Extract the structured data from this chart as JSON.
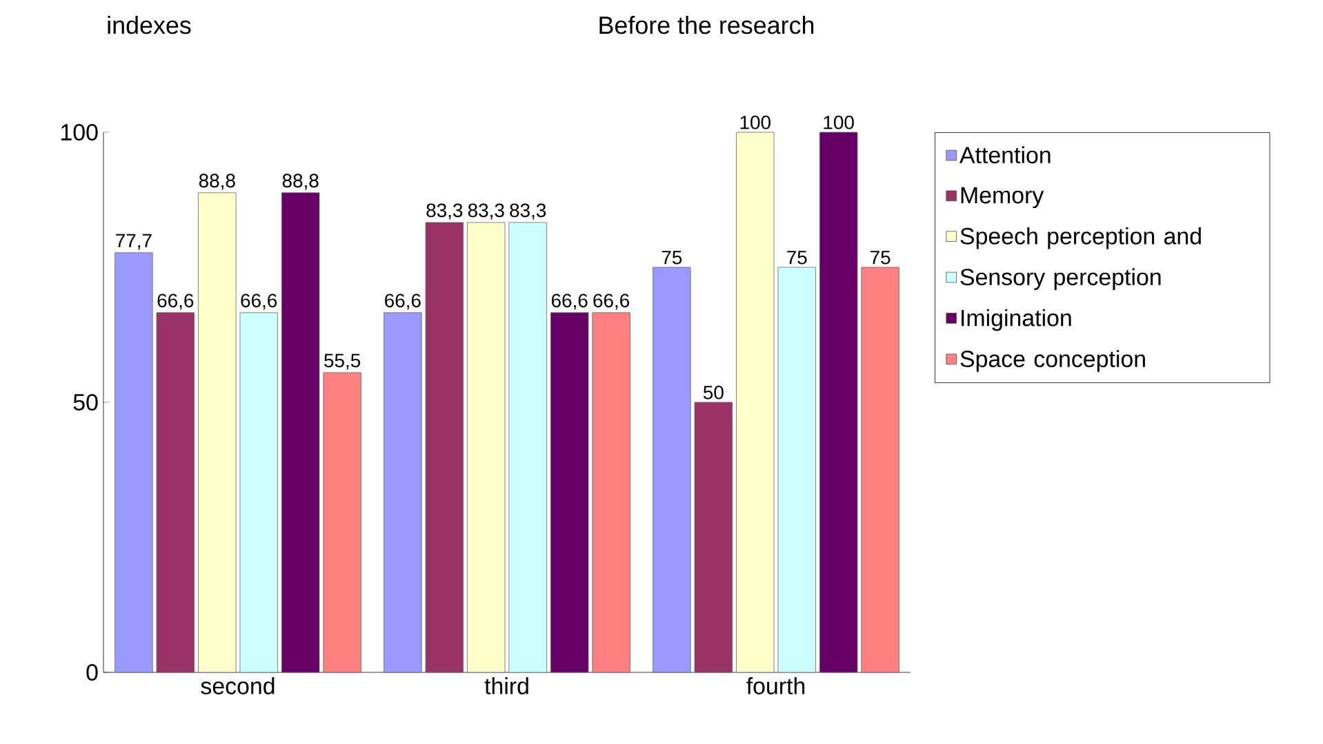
{
  "chart_data": {
    "type": "bar",
    "title": "Before the research",
    "ylabel": "indexes",
    "categories": [
      "second",
      "third",
      "fourth"
    ],
    "ylim": [
      0,
      100
    ],
    "yticks": [
      0,
      50,
      100
    ],
    "grid": false,
    "legend": "right",
    "series": [
      {
        "name": "Attention",
        "color": "#9999ff",
        "values": [
          77.7,
          66.6,
          75
        ],
        "value_labels": [
          "77,7",
          "66,6",
          "75"
        ]
      },
      {
        "name": "Memory",
        "color": "#993366",
        "values": [
          66.6,
          83.3,
          50
        ],
        "value_labels": [
          "66,6",
          "83,3",
          "50"
        ]
      },
      {
        "name": "Speech perception and",
        "color": "#ffffcc",
        "values": [
          88.8,
          83.3,
          100
        ],
        "value_labels": [
          "88,8",
          "83,3",
          "100"
        ]
      },
      {
        "name": "Sensory perception",
        "color": "#ccffff",
        "values": [
          66.6,
          83.3,
          75
        ],
        "value_labels": [
          "66,6",
          "83,3",
          "75"
        ]
      },
      {
        "name": "Imigination",
        "color": "#660066",
        "values": [
          88.8,
          66.6,
          100
        ],
        "value_labels": [
          "88,8",
          "66,6",
          "100"
        ]
      },
      {
        "name": "Space conception",
        "color": "#ff8080",
        "values": [
          55.5,
          66.6,
          75
        ],
        "value_labels": [
          "55,5",
          "66,6",
          "75"
        ]
      }
    ]
  }
}
